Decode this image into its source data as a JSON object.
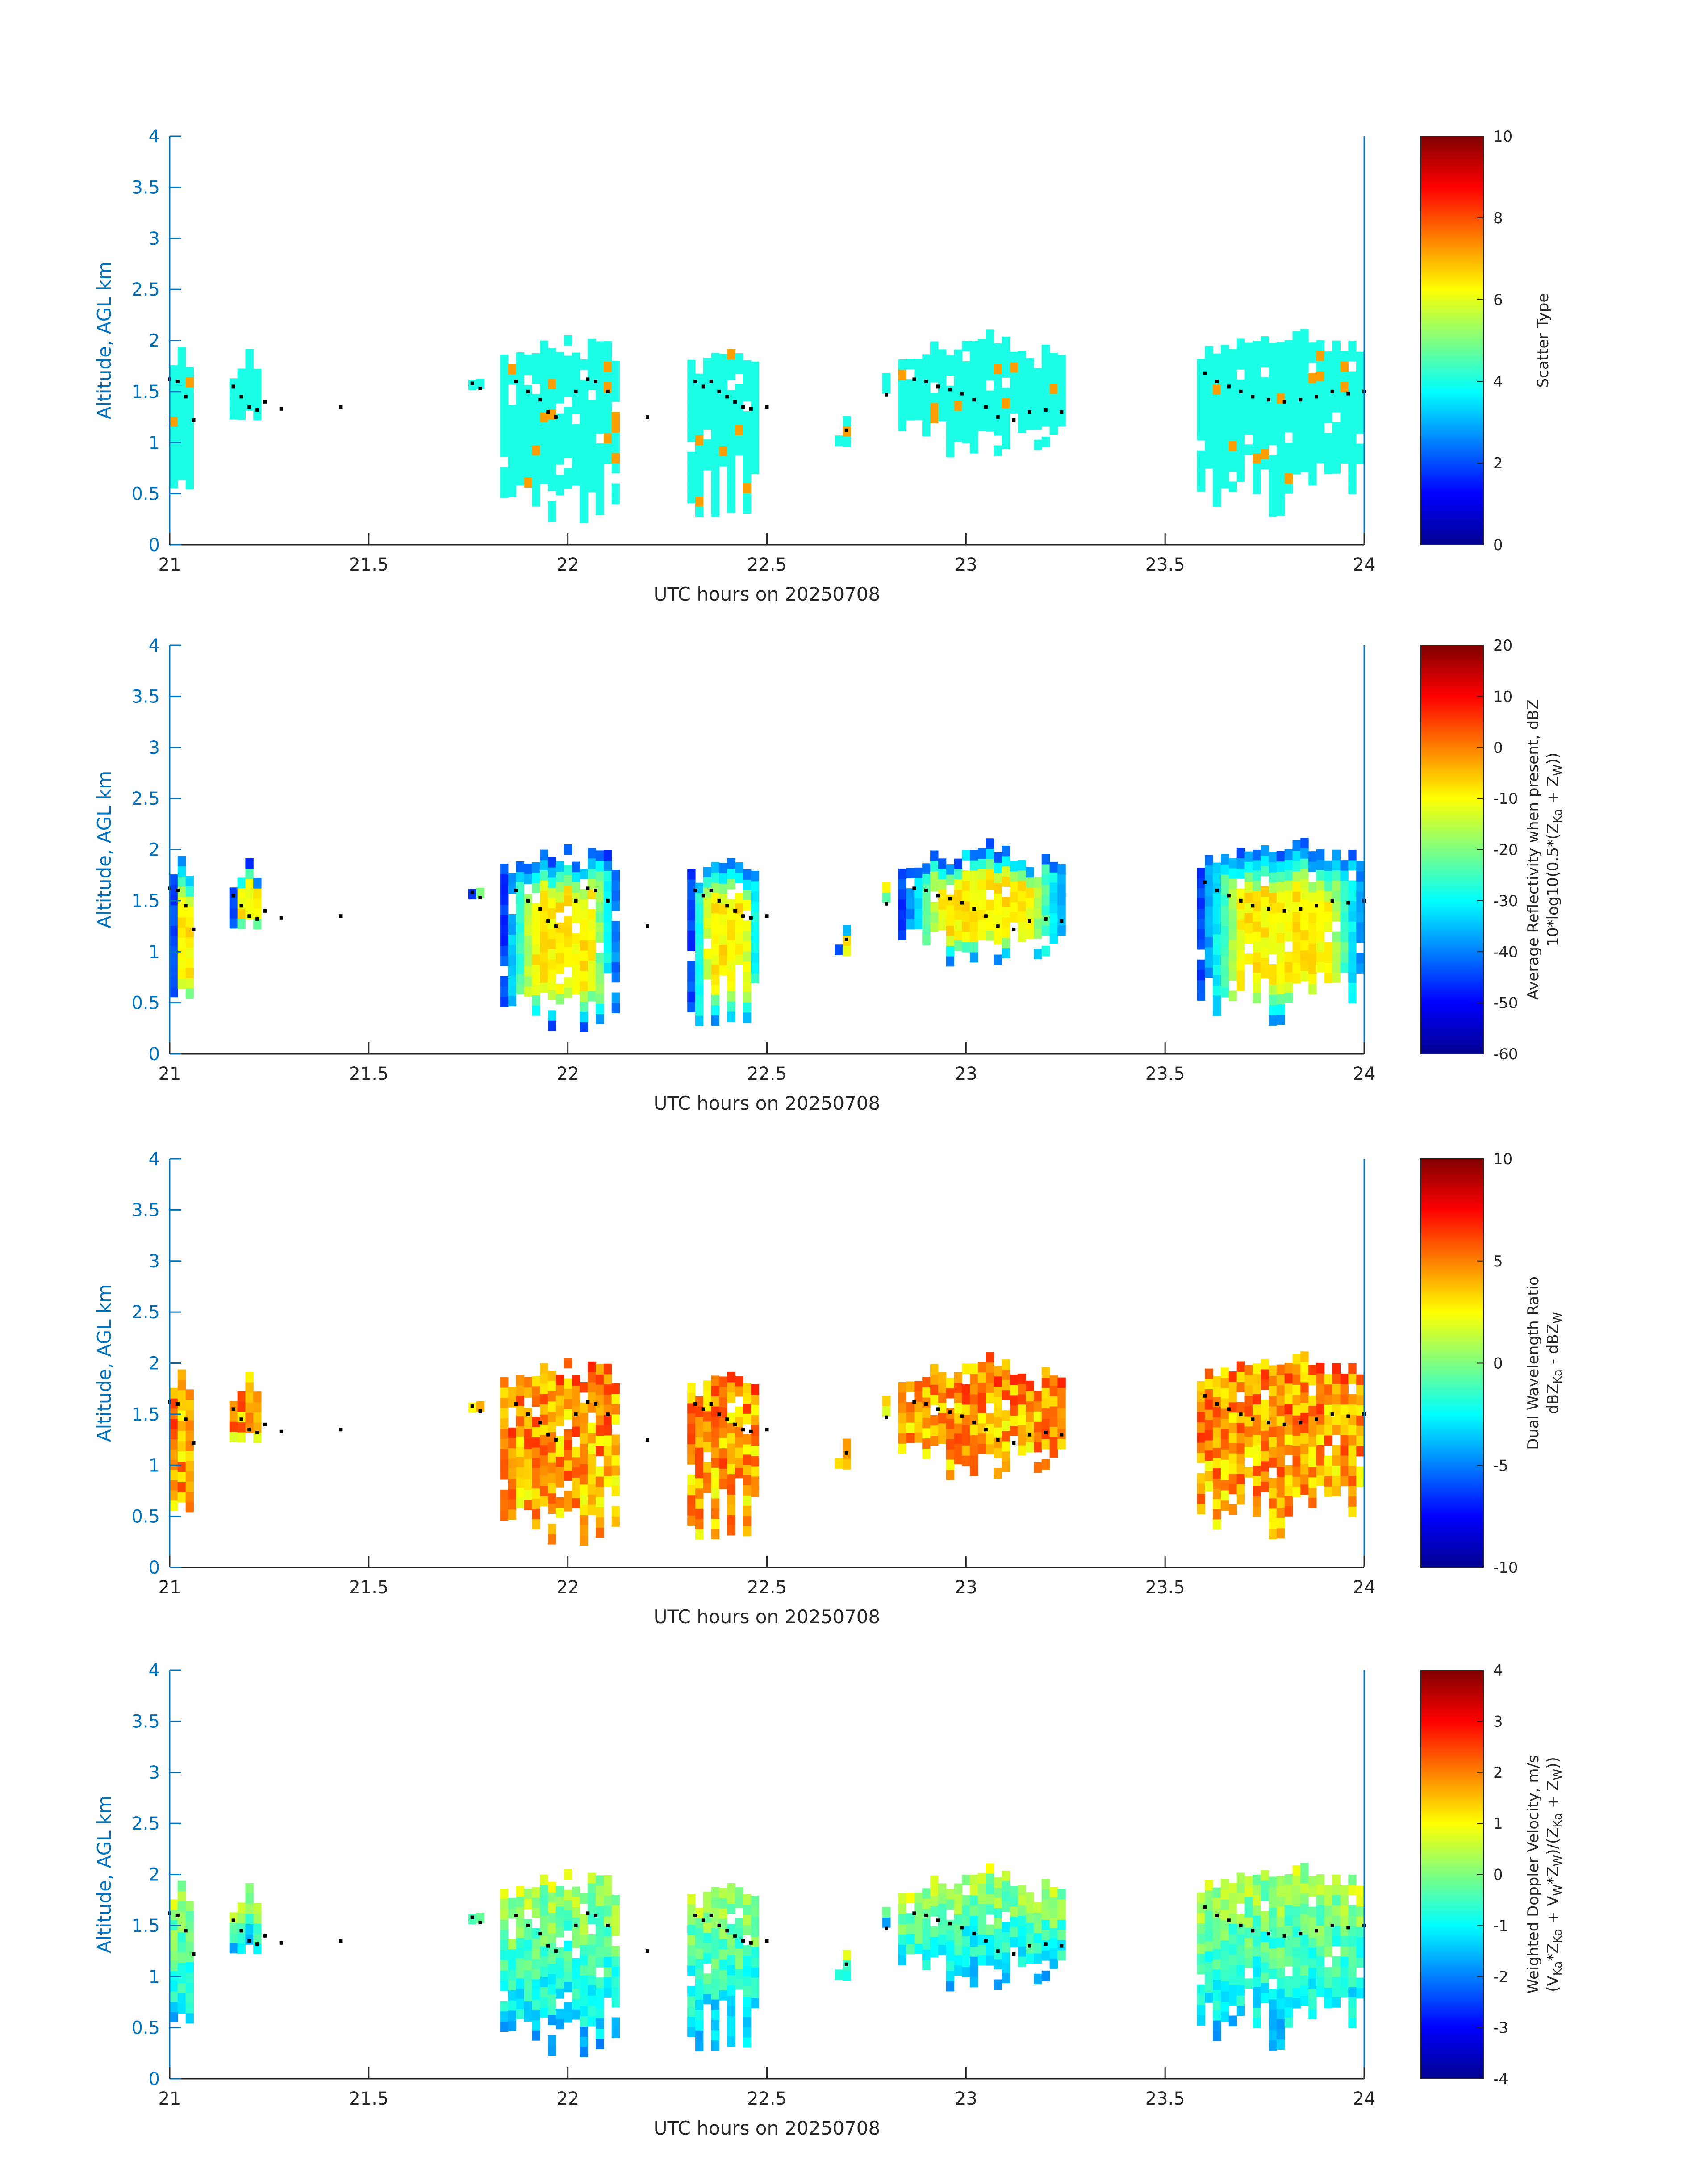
{
  "figure_title": "",
  "chart_data": [
    {
      "type": "heatmap",
      "panel": 1,
      "title": "",
      "xlabel": "UTC hours on 20250708",
      "ylabel": "Altitude, AGL km",
      "xlim": [
        21,
        24
      ],
      "ylim": [
        0,
        4
      ],
      "xticks": [
        "21",
        "21.5",
        "22",
        "22.5",
        "23",
        "23.5",
        "24"
      ],
      "yticks": [
        "0",
        "0.5",
        "1",
        "1.5",
        "2",
        "2.5",
        "3",
        "3.5",
        "4"
      ],
      "colorbar": {
        "label": "Scatter Type",
        "range": [
          0,
          10
        ],
        "ticks": [
          "0",
          "2",
          "4",
          "6",
          "8",
          "10"
        ]
      },
      "field": "scatter_type"
    },
    {
      "type": "heatmap",
      "panel": 2,
      "title": "",
      "xlabel": "UTC hours on 20250708",
      "ylabel": "Altitude, AGL km",
      "xlim": [
        21,
        24
      ],
      "ylim": [
        0,
        4
      ],
      "xticks": [
        "21",
        "21.5",
        "22",
        "22.5",
        "23",
        "23.5",
        "24"
      ],
      "yticks": [
        "0",
        "0.5",
        "1",
        "1.5",
        "2",
        "2.5",
        "3",
        "3.5",
        "4"
      ],
      "colorbar": {
        "label_line1": "Average Reflectivity when present, dBZ",
        "label_line2_prefix": "10*log10(0.5*(Z",
        "label_line2_sub1": "Ka",
        "label_line2_mid": " + Z",
        "label_line2_sub2": "W",
        "label_line2_suffix": "))",
        "range": [
          -60,
          20
        ],
        "ticks": [
          "-60",
          "-50",
          "-40",
          "-30",
          "-20",
          "-10",
          "0",
          "10",
          "20"
        ]
      },
      "field": "reflectivity"
    },
    {
      "type": "heatmap",
      "panel": 3,
      "title": "",
      "xlabel": "UTC hours on 20250708",
      "ylabel": "Altitude, AGL km",
      "xlim": [
        21,
        24
      ],
      "ylim": [
        0,
        4
      ],
      "xticks": [
        "21",
        "21.5",
        "22",
        "22.5",
        "23",
        "23.5",
        "24"
      ],
      "yticks": [
        "0",
        "0.5",
        "1",
        "1.5",
        "2",
        "2.5",
        "3",
        "3.5",
        "4"
      ],
      "colorbar": {
        "label_line1": "Dual Wavelength Ratio",
        "label_line2_prefix": "dBZ",
        "label_line2_sub1": "Ka",
        "label_line2_mid": " - dBZ",
        "label_line2_sub2": "W",
        "label_line2_suffix": "",
        "range": [
          -10,
          10
        ],
        "ticks": [
          "-10",
          "-5",
          "0",
          "5",
          "10"
        ]
      },
      "field": "dwr"
    },
    {
      "type": "heatmap",
      "panel": 4,
      "title": "",
      "xlabel": "UTC hours on 20250708",
      "ylabel": "Altitude, AGL km",
      "xlim": [
        21,
        24
      ],
      "ylim": [
        0,
        4
      ],
      "xticks": [
        "21",
        "21.5",
        "22",
        "22.5",
        "23",
        "23.5",
        "24"
      ],
      "yticks": [
        "0",
        "0.5",
        "1",
        "1.5",
        "2",
        "2.5",
        "3",
        "3.5",
        "4"
      ],
      "colorbar": {
        "label_line1": "Weighted Doppler Velocity, m/s",
        "label_line2_prefix": "(V",
        "label_line2_sub1": "Ka",
        "label_line2_mid": "*Z",
        "label_line2_sub2": "Ka",
        "label_line2_mid2": " + V",
        "label_line2_sub3": "W",
        "label_line2_mid3": "*Z",
        "label_line2_sub4": "W",
        "label_line2_mid4": ")/(Z",
        "label_line2_sub5": "Ka",
        "label_line2_mid5": " + Z",
        "label_line2_sub6": "W",
        "label_line2_suffix": "))",
        "range": [
          -4,
          4
        ],
        "ticks": [
          "-4",
          "-3",
          "-2",
          "-1",
          "0",
          "1",
          "2",
          "3",
          "4"
        ]
      },
      "field": "doppler"
    }
  ],
  "cloud_clusters": [
    {
      "t": [
        21.0,
        21.06
      ],
      "base_km": 0.3,
      "top_km": 1.85
    },
    {
      "t": [
        21.15,
        21.23
      ],
      "base_km": 1.15,
      "top_km": 1.75
    },
    {
      "t": [
        21.26,
        21.28
      ],
      "base_km": 1.25,
      "top_km": 1.4
    },
    {
      "t": [
        21.42,
        21.44
      ],
      "base_km": 1.25,
      "top_km": 1.45
    },
    {
      "t": [
        21.75,
        21.78
      ],
      "base_km": 1.5,
      "top_km": 1.65
    },
    {
      "t": [
        21.83,
        22.12
      ],
      "base_km": 0.2,
      "top_km": 1.95
    },
    {
      "t": [
        22.19,
        22.21
      ],
      "base_km": 1.2,
      "top_km": 1.35
    },
    {
      "t": [
        22.3,
        22.48
      ],
      "base_km": 0.2,
      "top_km": 1.85
    },
    {
      "t": [
        22.49,
        22.51
      ],
      "base_km": 1.3,
      "top_km": 1.4
    },
    {
      "t": [
        22.67,
        22.71
      ],
      "base_km": 0.9,
      "top_km": 1.25
    },
    {
      "t": [
        22.77,
        22.81
      ],
      "base_km": 1.45,
      "top_km": 1.6
    },
    {
      "t": [
        22.83,
        23.25
      ],
      "base_km": 0.85,
      "top_km": 1.95
    },
    {
      "t": [
        23.58,
        24.0
      ],
      "base_km": 0.2,
      "top_km": 2.0
    }
  ],
  "cloud_base_dots": [
    [
      21.0,
      1.62
    ],
    [
      21.02,
      1.6
    ],
    [
      21.04,
      1.45
    ],
    [
      21.06,
      1.22
    ],
    [
      21.16,
      1.55
    ],
    [
      21.18,
      1.45
    ],
    [
      21.2,
      1.35
    ],
    [
      21.22,
      1.32
    ],
    [
      21.24,
      1.4
    ],
    [
      21.28,
      1.33
    ],
    [
      21.43,
      1.35
    ],
    [
      21.76,
      1.58
    ],
    [
      21.78,
      1.53
    ],
    [
      21.87,
      1.6
    ],
    [
      21.9,
      1.5
    ],
    [
      21.93,
      1.42
    ],
    [
      21.95,
      1.3
    ],
    [
      21.97,
      1.25
    ],
    [
      22.02,
      1.5
    ],
    [
      22.05,
      1.62
    ],
    [
      22.07,
      1.6
    ],
    [
      22.1,
      1.5
    ],
    [
      22.2,
      1.25
    ],
    [
      22.32,
      1.6
    ],
    [
      22.34,
      1.55
    ],
    [
      22.36,
      1.6
    ],
    [
      22.38,
      1.5
    ],
    [
      22.4,
      1.45
    ],
    [
      22.42,
      1.4
    ],
    [
      22.44,
      1.35
    ],
    [
      22.46,
      1.33
    ],
    [
      22.5,
      1.35
    ],
    [
      22.7,
      1.12
    ],
    [
      22.8,
      1.47
    ],
    [
      22.87,
      1.62
    ],
    [
      22.9,
      1.6
    ],
    [
      22.93,
      1.55
    ],
    [
      22.96,
      1.52
    ],
    [
      22.99,
      1.48
    ],
    [
      23.02,
      1.42
    ],
    [
      23.05,
      1.35
    ],
    [
      23.08,
      1.25
    ],
    [
      23.12,
      1.22
    ],
    [
      23.16,
      1.3
    ],
    [
      23.2,
      1.32
    ],
    [
      23.24,
      1.3
    ],
    [
      23.6,
      1.68
    ],
    [
      23.63,
      1.6
    ],
    [
      23.66,
      1.55
    ],
    [
      23.69,
      1.5
    ],
    [
      23.72,
      1.45
    ],
    [
      23.76,
      1.42
    ],
    [
      23.8,
      1.4
    ],
    [
      23.84,
      1.42
    ],
    [
      23.88,
      1.45
    ],
    [
      23.92,
      1.5
    ],
    [
      23.96,
      1.48
    ],
    [
      24.0,
      1.5
    ]
  ]
}
